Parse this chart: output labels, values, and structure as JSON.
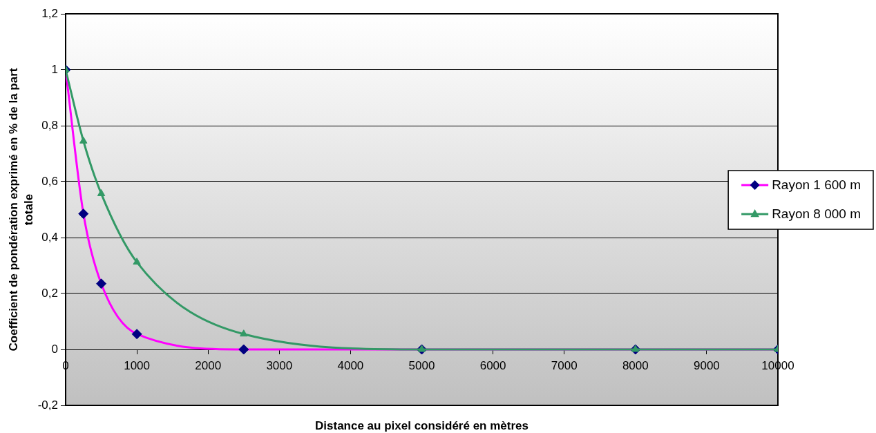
{
  "chart_data": {
    "type": "line",
    "xlabel": "Distance au pixel considéré en mètres",
    "ylabel": "Coefficient de pondération exprimé en % de la part totale",
    "x": [
      0,
      250,
      500,
      1000,
      2500,
      5000,
      8000,
      10000
    ],
    "series": [
      {
        "name": "Rayon 1 600 m",
        "color": "#ff00ff",
        "colors": [
          "#000080",
          "#000080",
          "#000080",
          "#000080",
          "#000080",
          "#000080",
          "#000080",
          "#000080"
        ],
        "marker": "diamond",
        "values": [
          1,
          0.485,
          0.235,
          0.055,
          0,
          0,
          0,
          0
        ]
      },
      {
        "name": "Rayon 8 000 m",
        "color": "#339966",
        "marker": "triangle",
        "values": [
          1,
          0.745,
          0.557,
          0.312,
          0.055,
          0,
          0,
          0
        ]
      }
    ],
    "xlim": [
      0,
      10000
    ],
    "xticks": [
      0,
      1000,
      2000,
      3000,
      4000,
      5000,
      6000,
      7000,
      8000,
      9000,
      10000
    ],
    "ylim": [
      -0.2,
      1.2
    ],
    "yticks": [
      {
        "value": -0.2,
        "label": "-0,2"
      },
      0,
      {
        "value": 0.2,
        "label": "0,2"
      },
      {
        "value": 0.4,
        "label": "0,4"
      },
      {
        "value": 0.6,
        "label": "0,6"
      },
      {
        "value": 0.8,
        "label": "0,8"
      },
      1,
      {
        "value": 1.2,
        "label": "1,2"
      }
    ],
    "grid": "y",
    "legend": "right"
  }
}
